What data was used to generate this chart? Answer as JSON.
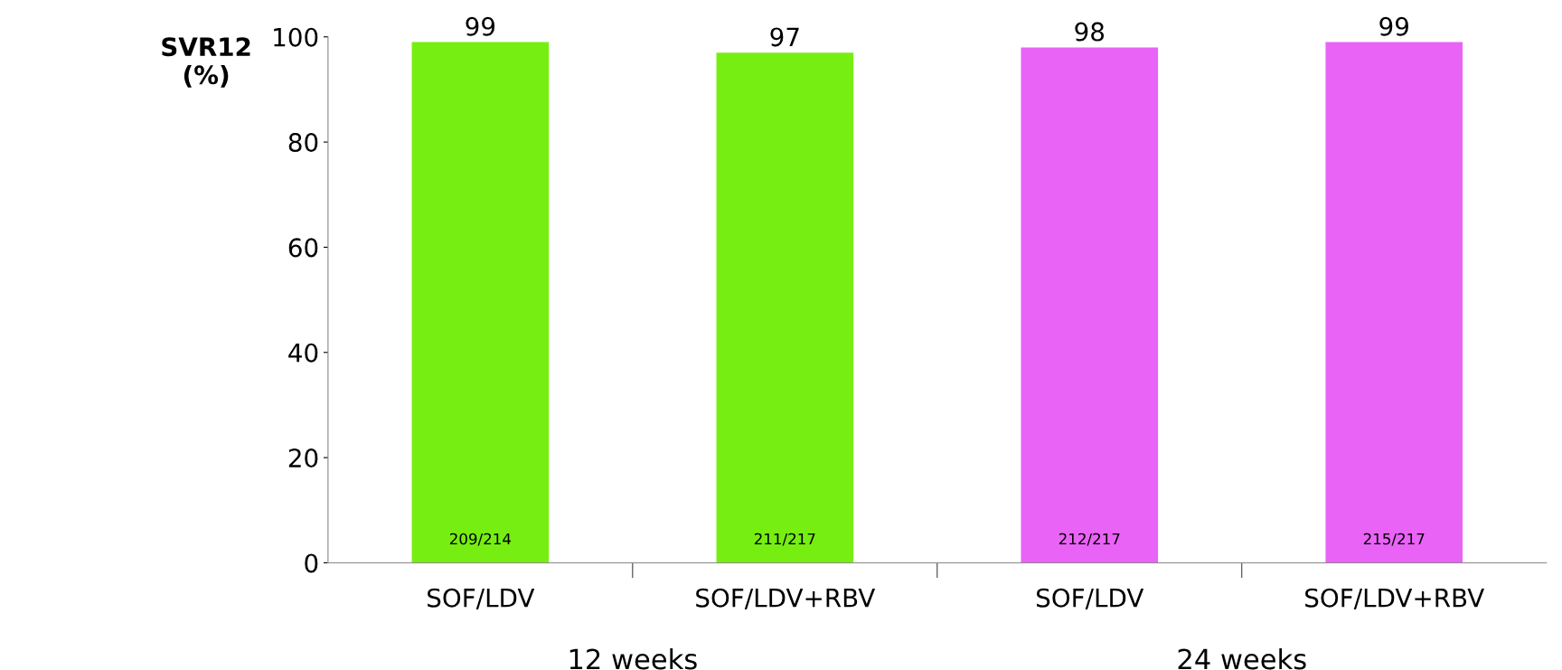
{
  "chart_data": {
    "type": "bar",
    "categories": [
      "SOF/LDV",
      "SOF/LDV+RBV",
      "SOF/LDV",
      "SOF/LDV+RBV"
    ],
    "values": [
      99,
      97,
      98,
      99
    ],
    "colors": [
      "#77ee11",
      "#77ee11",
      "#e963f7",
      "#e963f7"
    ],
    "data_labels": true,
    "ylabel": "SVR12\n(%)",
    "ylim": [
      0,
      100
    ],
    "yticks": [
      0,
      20,
      40,
      60,
      80,
      100
    ],
    "annotations": [
      "209/214",
      "211/217",
      "212/217",
      "215/217",
      "12 weeks",
      "24 weeks"
    ],
    "grid": false,
    "legend": false
  }
}
